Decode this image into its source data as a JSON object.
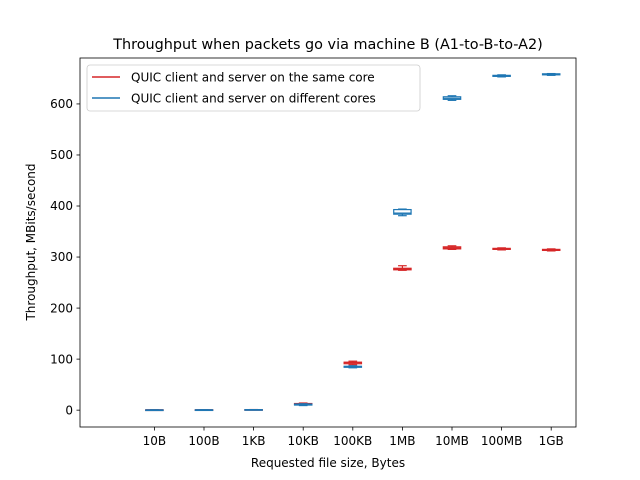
{
  "chart_data": {
    "type": "box",
    "title": "Throughput when packets go via machine B (A1-to-B-to-A2)",
    "xlabel": "Requested file size, Bytes",
    "ylabel": "Throughput, MBits/second",
    "categories": [
      "10B",
      "100B",
      "1KB",
      "10KB",
      "100KB",
      "1MB",
      "10MB",
      "100MB",
      "1GB"
    ],
    "ylim": [
      -33,
      690
    ],
    "yticks": [
      0,
      100,
      200,
      300,
      400,
      500,
      600
    ],
    "legend_position": "top-left",
    "grid": false,
    "series": [
      {
        "name": "QUIC client and server on the same core",
        "color": "#d62728",
        "boxes": [
          {
            "whislo": 0.3,
            "q1": 0.4,
            "med": 0.5,
            "q3": 0.6,
            "whishi": 0.7
          },
          {
            "whislo": 0.4,
            "q1": 0.5,
            "med": 0.6,
            "q3": 0.7,
            "whishi": 0.8
          },
          {
            "whislo": 0.8,
            "q1": 0.9,
            "med": 1.0,
            "q3": 1.1,
            "whishi": 1.2
          },
          {
            "whislo": 11,
            "q1": 12,
            "med": 12.5,
            "q3": 13,
            "whishi": 14
          },
          {
            "whislo": 89,
            "q1": 91,
            "med": 93,
            "q3": 94,
            "whishi": 96
          },
          {
            "whislo": 274,
            "q1": 275,
            "med": 276.5,
            "q3": 278,
            "whishi": 283
          },
          {
            "whislo": 315,
            "q1": 316,
            "med": 318,
            "q3": 320,
            "whishi": 322
          },
          {
            "whislo": 314,
            "q1": 315,
            "med": 316,
            "q3": 317,
            "whishi": 318
          },
          {
            "whislo": 312,
            "q1": 313,
            "med": 314,
            "q3": 315,
            "whishi": 316
          }
        ]
      },
      {
        "name": "QUIC client and server on different cores",
        "color": "#1f77b4",
        "boxes": [
          {
            "whislo": 0.2,
            "q1": 0.3,
            "med": 0.4,
            "q3": 0.5,
            "whishi": 0.6
          },
          {
            "whislo": 0.3,
            "q1": 0.4,
            "med": 0.5,
            "q3": 0.6,
            "whishi": 0.7
          },
          {
            "whislo": 0.7,
            "q1": 0.8,
            "med": 0.9,
            "q3": 1.0,
            "whishi": 1.1
          },
          {
            "whislo": 9,
            "q1": 10,
            "med": 11,
            "q3": 12,
            "whishi": 12.5
          },
          {
            "whislo": 83,
            "q1": 84,
            "med": 85,
            "q3": 86,
            "whishi": 87
          },
          {
            "whislo": 381,
            "q1": 384,
            "med": 386,
            "q3": 393,
            "whishi": 394
          },
          {
            "whislo": 607,
            "q1": 609,
            "med": 611,
            "q3": 614,
            "whishi": 616
          },
          {
            "whislo": 653,
            "q1": 654,
            "med": 655,
            "q3": 656,
            "whishi": 657
          },
          {
            "whislo": 656,
            "q1": 657,
            "med": 658,
            "q3": 659,
            "whishi": 659.5
          }
        ]
      }
    ]
  }
}
